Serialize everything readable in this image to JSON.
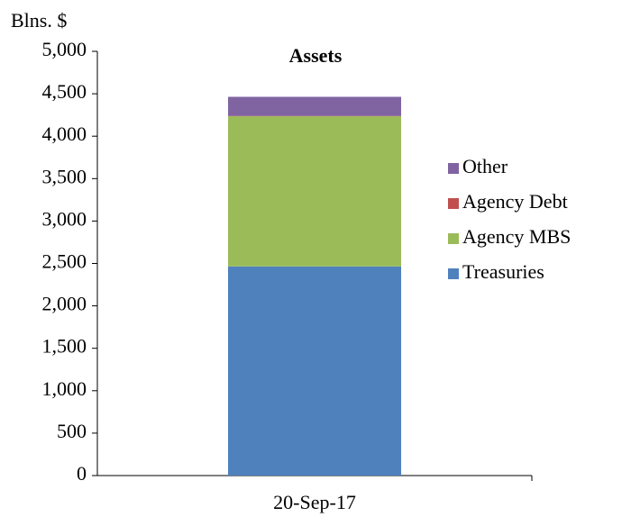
{
  "chart_data": {
    "type": "stacked_bar",
    "title": "Assets",
    "y_label": "Blns. $",
    "categories": [
      "20-Sep-17"
    ],
    "series": [
      {
        "name": "Treasuries",
        "color": "#4f81bd",
        "values": [
          2465
        ]
      },
      {
        "name": "Agency MBS",
        "color": "#9bbb59",
        "values": [
          1770
        ]
      },
      {
        "name": "Agency Debt",
        "color": "#c0504d",
        "values": [
          4
        ]
      },
      {
        "name": "Other",
        "color": "#8064a2",
        "values": [
          225
        ]
      }
    ],
    "ylim": [
      0,
      5000
    ],
    "yticks": [
      0,
      500,
      {
        "value": 1000,
        "label": "1,000"
      },
      {
        "value": 1500,
        "label": "1,500"
      },
      {
        "value": 2000,
        "label": "2,000"
      },
      {
        "value": 2500,
        "label": "2,500"
      },
      {
        "value": 3000,
        "label": "3,000"
      },
      {
        "value": 3500,
        "label": "3,500"
      },
      {
        "value": 4000,
        "label": "4,000"
      },
      {
        "value": 4500,
        "label": "4,500"
      },
      {
        "value": 5000,
        "label": "5,000"
      }
    ],
    "legend": "right",
    "grid": false
  }
}
